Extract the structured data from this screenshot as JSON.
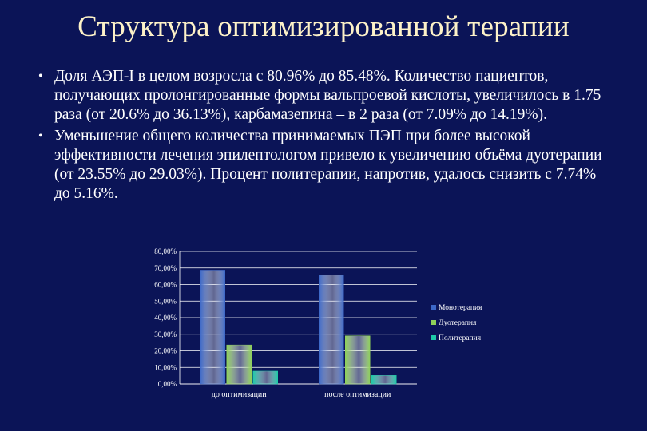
{
  "slide": {
    "title": "Структура оптимизированной терапии",
    "bullets": [
      "Доля АЭП-I в целом возросла с 80.96% до 85.48%. Количество пациентов, получающих пролонгированные формы вальпроевой кислоты, увеличилось в 1.75 раза (от 20.6% до 36.13%), карбамазепина – в 2 раза (от 7.09% до 14.19%).",
      "Уменьшение общего количества принимаемых ПЭП при более высокой эффективности лечения эпилептологом привело к увеличению объёма дуотерапии (от 23.55% до 29.03%). Процент политерапии, напротив, удалось снизить с 7.74% до 5.16%."
    ]
  },
  "chart_data": {
    "type": "bar",
    "categories": [
      "до оптимизации",
      "после оптимизации"
    ],
    "series": [
      {
        "name": "Монотерапия",
        "values": [
          68.71,
          65.81
        ],
        "color": "#3c68c8"
      },
      {
        "name": "Дуотерапия",
        "values": [
          23.55,
          29.03
        ],
        "color": "#8fd15a"
      },
      {
        "name": "Политерапия",
        "values": [
          7.74,
          5.16
        ],
        "color": "#1ec9a8"
      }
    ],
    "ylim": [
      0,
      80
    ],
    "yticks": [
      "0,00%",
      "10,00%",
      "20,00%",
      "30,00%",
      "40,00%",
      "50,00%",
      "60,00%",
      "70,00%",
      "80,00%"
    ],
    "grid": true,
    "legend": "right"
  }
}
